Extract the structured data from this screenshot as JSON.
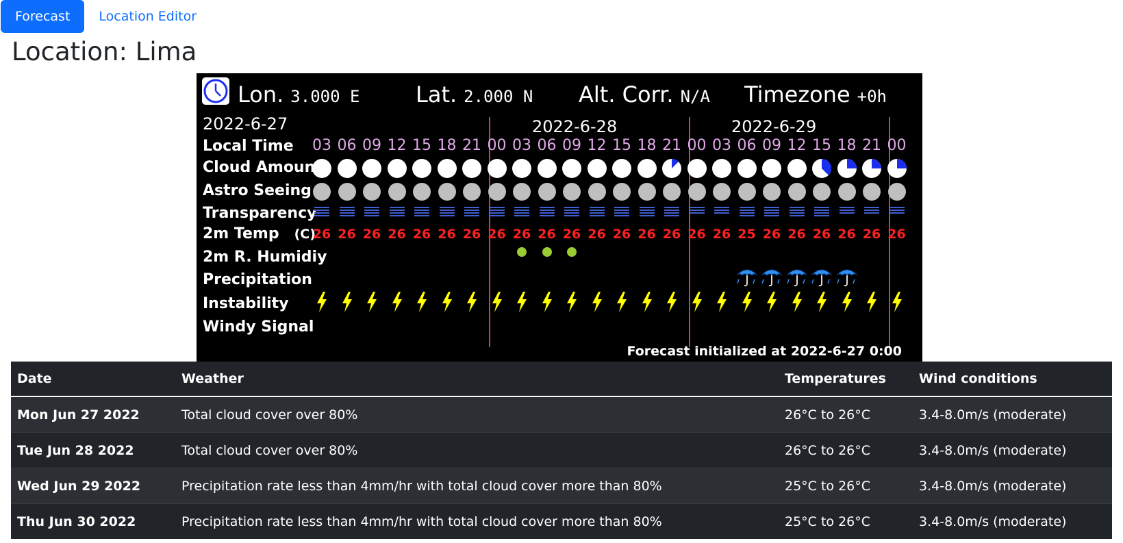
{
  "nav": {
    "tabs": [
      "Forecast",
      "Location Editor"
    ]
  },
  "page": {
    "title": "Location: Lima"
  },
  "meteogram": {
    "lon_label": "Lon.",
    "lon_value": "3.000 E",
    "lat_label": "Lat.",
    "lat_value": "2.000 N",
    "alt_label": "Alt. Corr.",
    "alt_value": "N/A",
    "tz_label": "Timezone",
    "tz_value": "+0h",
    "dates": [
      "2022-6-27",
      "2022-6-28",
      "2022-6-29"
    ],
    "row_labels": [
      "Local Time",
      "Cloud Amount",
      "Astro Seeing",
      "Transparency",
      "2m Temp",
      "(C)",
      "2m R. Humidiy",
      "Precipitation",
      "Instability",
      "Windy Signal"
    ],
    "hours": [
      "03",
      "06",
      "09",
      "12",
      "15",
      "18",
      "21",
      "00",
      "03",
      "06",
      "09",
      "12",
      "15",
      "18",
      "21",
      "00",
      "03",
      "06",
      "09",
      "12",
      "15",
      "18",
      "21",
      "00"
    ],
    "cloud_fraction_blue": [
      0,
      0,
      0,
      0,
      0,
      0,
      0,
      0,
      0,
      0,
      0,
      0,
      0,
      0,
      0.125,
      0,
      0,
      0,
      0,
      0,
      0.375,
      0.25,
      0.25,
      0.25
    ],
    "transparency_bars": [
      4,
      4,
      4,
      4,
      4,
      4,
      4,
      4,
      4,
      4,
      4,
      4,
      4,
      4,
      4,
      3,
      3,
      4,
      4,
      4,
      4,
      3,
      3,
      3
    ],
    "temps": [
      "26",
      "26",
      "26",
      "26",
      "26",
      "26",
      "26",
      "26",
      "26",
      "26",
      "26",
      "26",
      "26",
      "26",
      "26",
      "26",
      "26",
      "25",
      "26",
      "26",
      "26",
      "26",
      "26",
      "26"
    ],
    "humidity_marks": [
      8,
      9,
      10
    ],
    "precip_marks": [
      17,
      18,
      19,
      20,
      21
    ],
    "footer": "Forecast initialized at 2022-6-27 0:00",
    "colors": {
      "cloud_blue": "#1a2ef0",
      "seeing_gray": "#bfbfbf",
      "transp_blue": "#4060d0",
      "humidity_green": "#9acd32",
      "instability_yellow": "#ffff00",
      "umbrella_blue": "#2e8ff0"
    }
  },
  "table": {
    "headers": [
      "Date",
      "Weather",
      "Temperatures",
      "Wind conditions"
    ],
    "rows": [
      [
        "Mon Jun 27 2022",
        "Total cloud cover over 80%",
        "26°C to 26°C",
        "3.4-8.0m/s (moderate)"
      ],
      [
        "Tue Jun 28 2022",
        "Total cloud cover over 80%",
        "26°C to 26°C",
        "3.4-8.0m/s (moderate)"
      ],
      [
        "Wed Jun 29 2022",
        "Precipitation rate less than 4mm/hr with total cloud cover more than 80%",
        "25°C to 26°C",
        "3.4-8.0m/s (moderate)"
      ],
      [
        "Thu Jun 30 2022",
        "Precipitation rate less than 4mm/hr with total cloud cover more than 80%",
        "25°C to 26°C",
        "3.4-8.0m/s (moderate)"
      ]
    ]
  }
}
